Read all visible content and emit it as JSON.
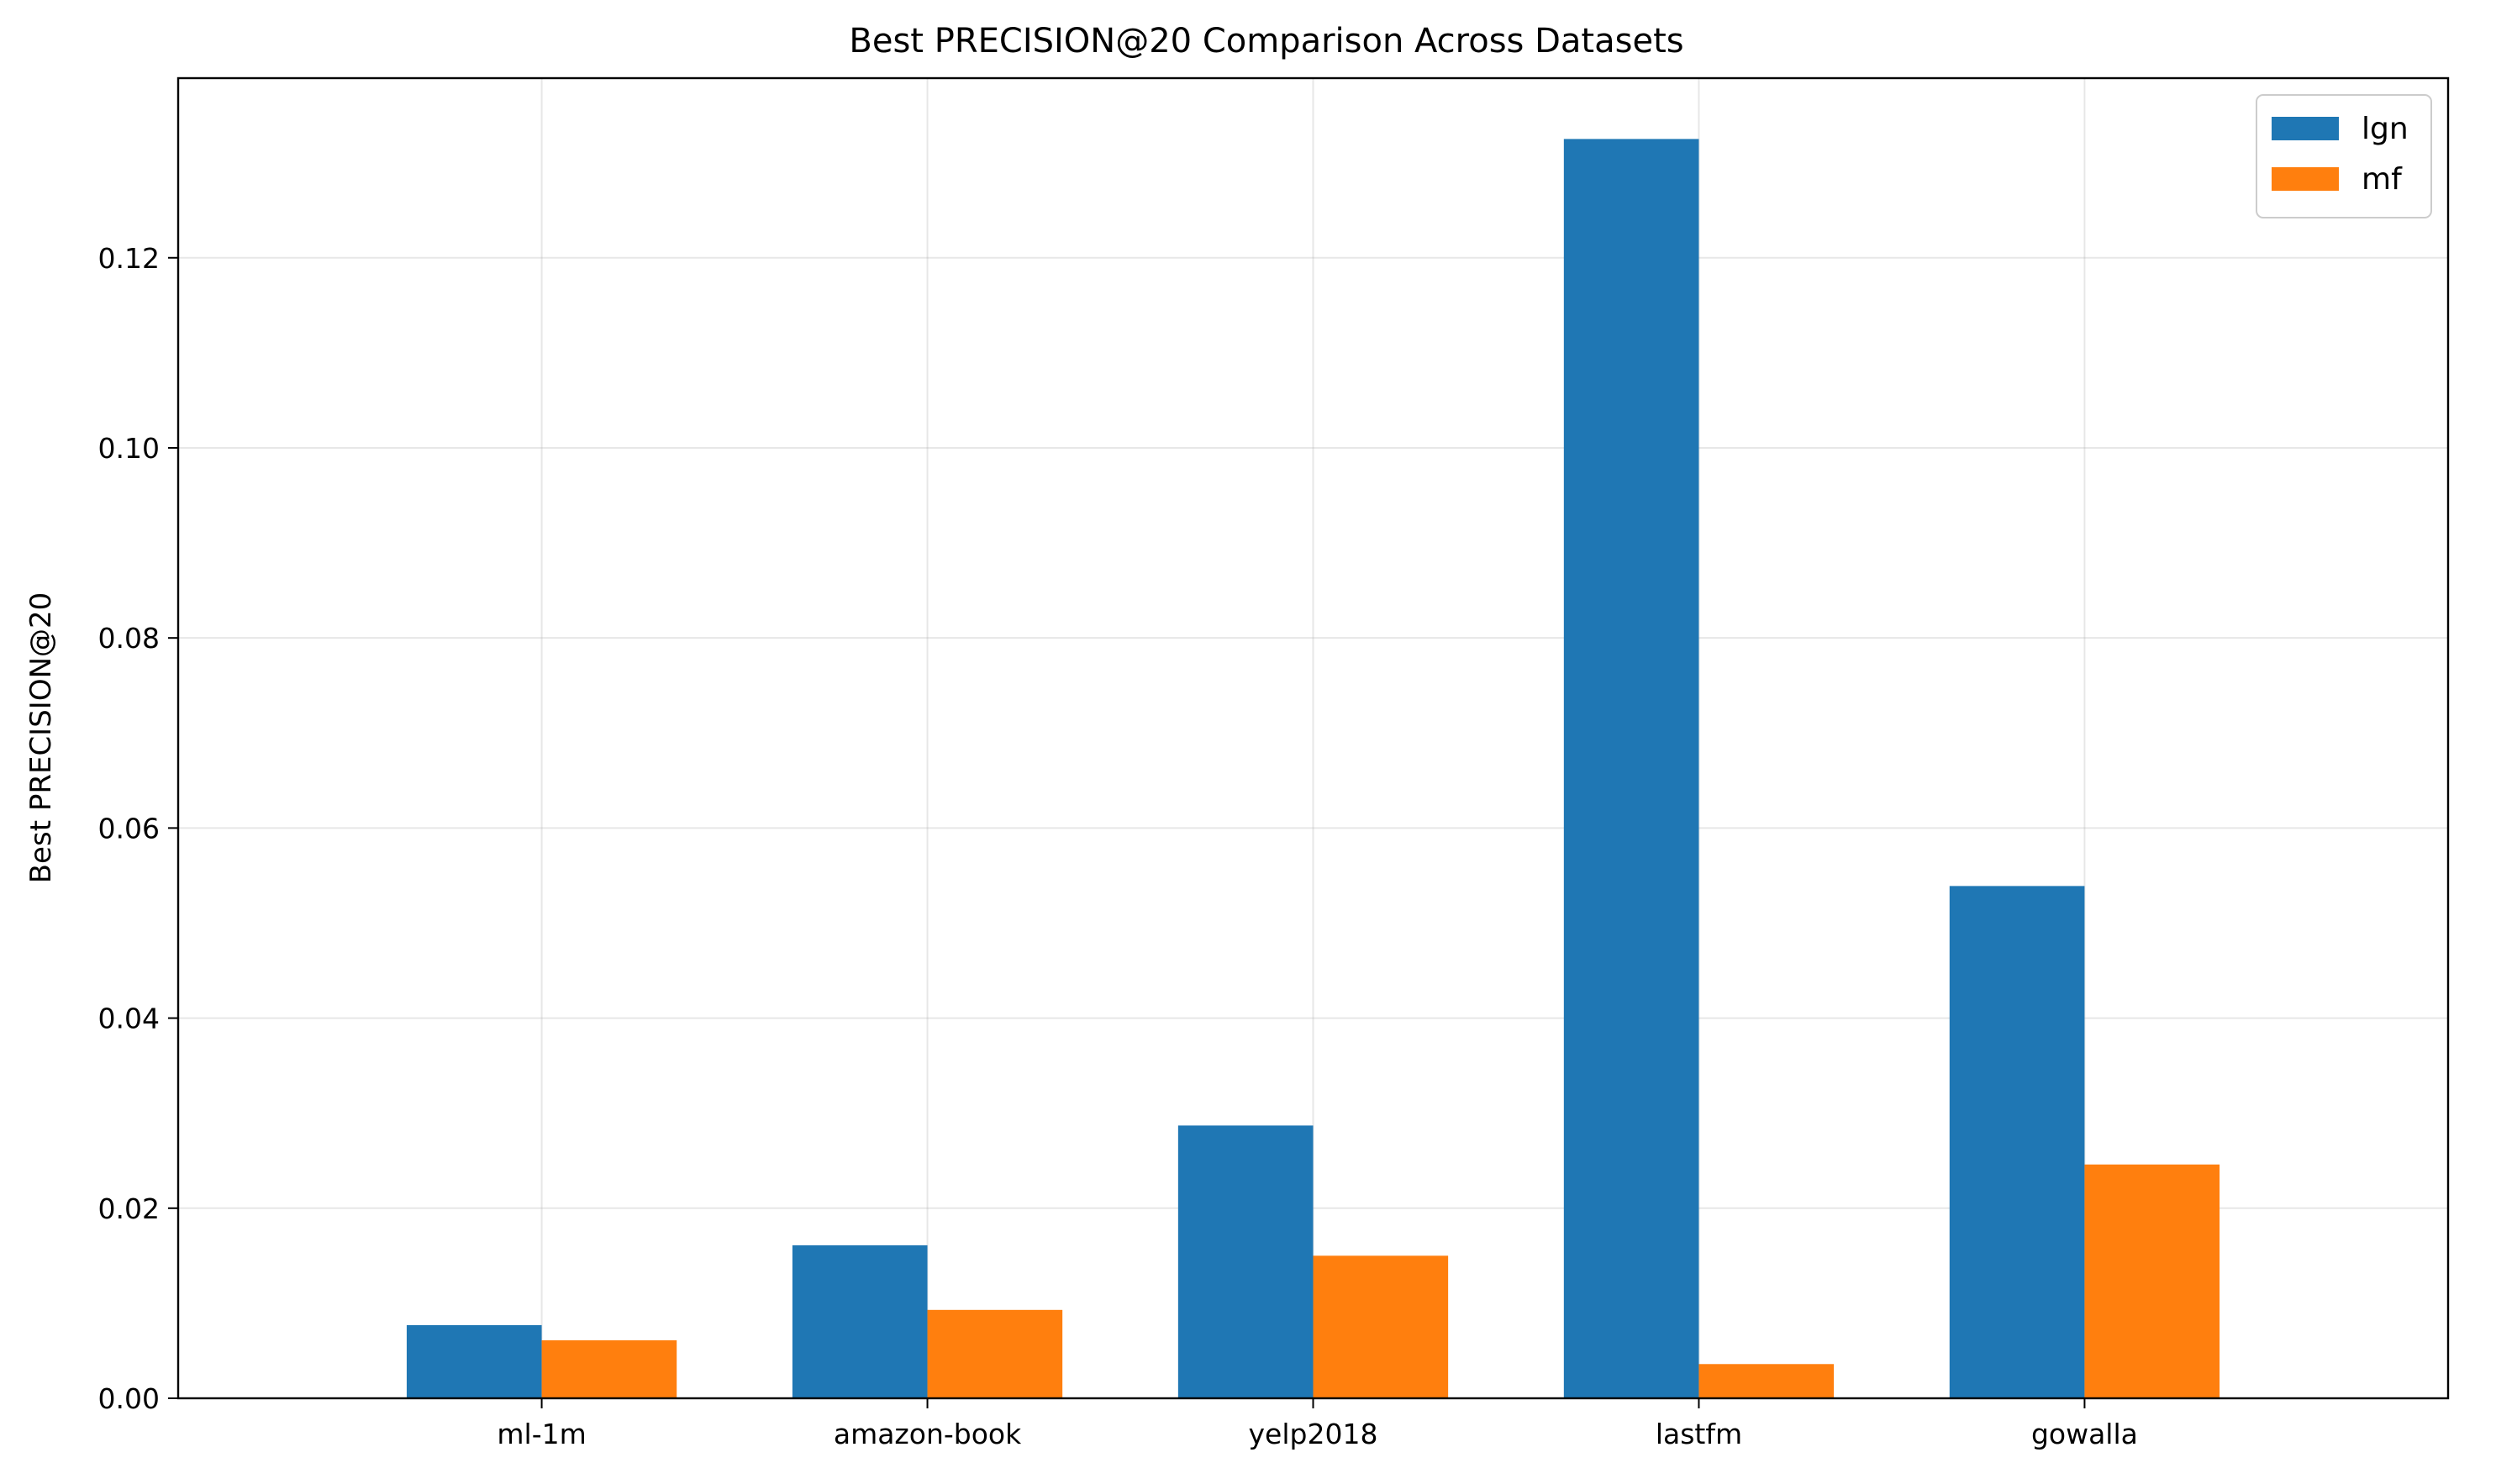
{
  "chart_data": {
    "type": "bar",
    "title": "Best PRECISION@20 Comparison Across Datasets",
    "xlabel": "",
    "ylabel": "Best PRECISION@20",
    "categories": [
      "ml-1m",
      "amazon-book",
      "yelp2018",
      "lastfm",
      "gowalla"
    ],
    "series": [
      {
        "name": "lgn",
        "color": "#1f77b4",
        "values": [
          0.0077,
          0.0161,
          0.0287,
          0.1325,
          0.0539
        ]
      },
      {
        "name": "mf",
        "color": "#ff7f0e",
        "values": [
          0.0061,
          0.0093,
          0.015,
          0.0036,
          0.0246
        ]
      }
    ],
    "ylim": [
      0,
      0.1389
    ],
    "yticks": [
      0,
      0.02,
      0.04,
      0.06,
      0.08,
      0.1,
      0.12
    ],
    "ytick_labels": [
      "0.00",
      "0.02",
      "0.04",
      "0.06",
      "0.08",
      "0.10",
      "0.12"
    ],
    "grid": true,
    "legend_position": "top-right"
  }
}
